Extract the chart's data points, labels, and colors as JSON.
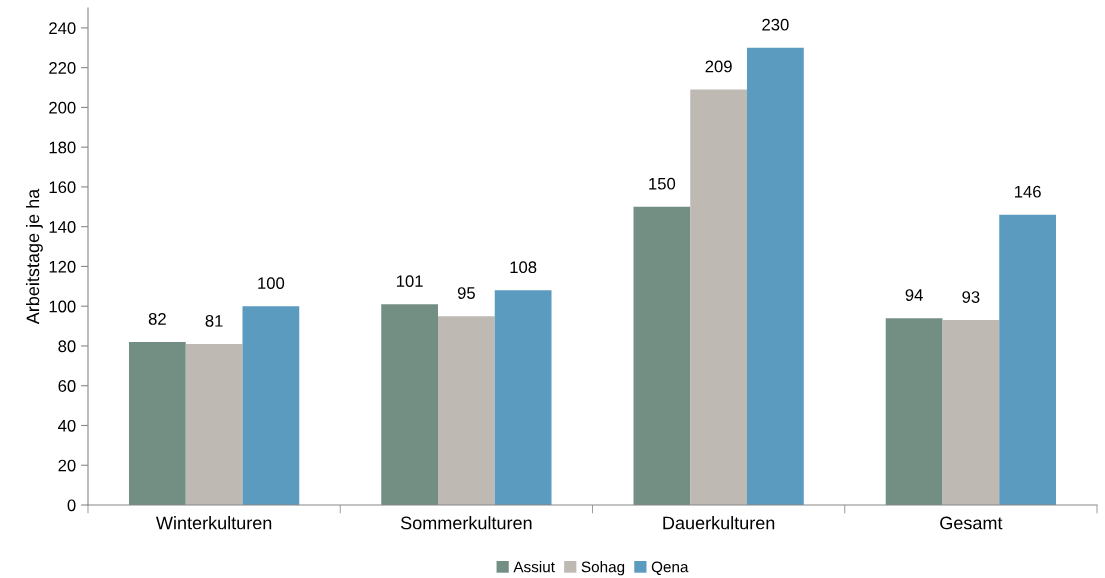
{
  "chart_data": {
    "type": "bar",
    "ylabel": "Arbeitstage je ha",
    "categories": [
      "Winterkulturen",
      "Sommerkulturen",
      "Dauerkulturen",
      "Gesamt"
    ],
    "series": [
      {
        "name": "Assiut",
        "color": "#738f84",
        "values": [
          82,
          101,
          150,
          94
        ]
      },
      {
        "name": "Sohag",
        "color": "#bfb9b4",
        "values": [
          81,
          95,
          209,
          93
        ]
      },
      {
        "name": "Qena",
        "color": "#5b9bbf",
        "values": [
          100,
          108,
          230,
          146
        ]
      }
    ],
    "ylim": [
      0,
      250
    ],
    "yticks": [
      0,
      20,
      40,
      60,
      80,
      100,
      120,
      140,
      160,
      180,
      200,
      220,
      240
    ],
    "grid": false,
    "legend": "bottom",
    "data_labels": true
  }
}
